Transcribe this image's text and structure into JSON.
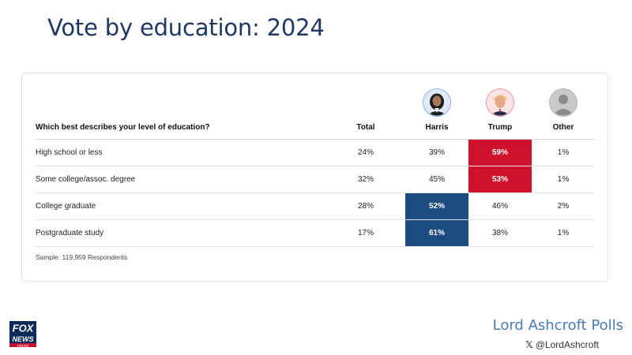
{
  "title": "Vote by education: 2024",
  "chart_data": {
    "type": "table",
    "question": "Which best describes your level of education?",
    "columns": [
      "Total",
      "Harris",
      "Trump",
      "Other"
    ],
    "rows": [
      {
        "label": "High school or less",
        "values": [
          "24%",
          "39%",
          "59%",
          "1%"
        ],
        "highlight": "Trump"
      },
      {
        "label": "Some college/assoc. degree",
        "values": [
          "32%",
          "45%",
          "53%",
          "1%"
        ],
        "highlight": "Trump"
      },
      {
        "label": "College graduate",
        "values": [
          "28%",
          "52%",
          "46%",
          "2%"
        ],
        "highlight": "Harris"
      },
      {
        "label": "Postgraduate study",
        "values": [
          "17%",
          "61%",
          "38%",
          "1%"
        ],
        "highlight": "Harris"
      }
    ],
    "colors": {
      "Harris": "#1c4b82",
      "Trump": "#d0112b"
    },
    "sample": "Sample: 119,959 Respondents"
  },
  "footer": {
    "brand": "Lord Ashcroft Polls",
    "handle": "@LordAshcroft",
    "x_icon": "𝕏",
    "logo_icon": "fox-news-logo"
  }
}
